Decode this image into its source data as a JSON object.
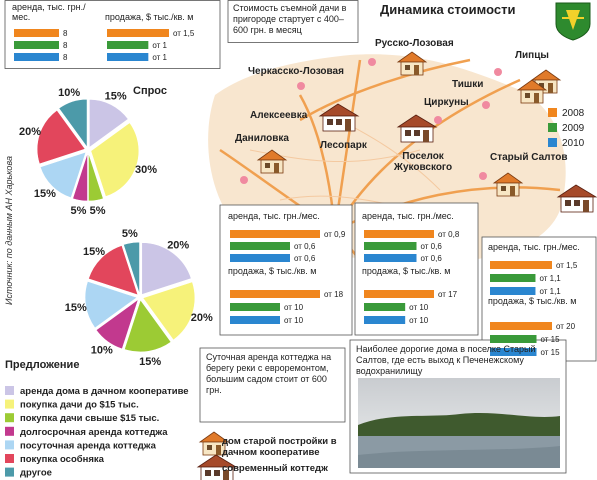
{
  "title": "Динамика стоимости",
  "source": "Источник: по данным АН Харькова",
  "legend": {
    "labels": [
      "2008",
      "2009",
      "2010"
    ],
    "colors": [
      "#f0861e",
      "#3a9a3a",
      "#2a86d0"
    ]
  },
  "notes": [
    "Стоимость съемной дачи в пригороде стартует с 400–600 грн. в месяц",
    "Суточная аренда коттеджа на берегу реки с евроремонтом, большим садом стоит от 600 грн.",
    "Наиболее дорогие дома в поселке Старый Салтов, где есть выход к Печенежскому водохранилищу"
  ],
  "places": [
    "Русско-Лозовая",
    "Черкасско-Лозовая",
    "Липцы",
    "Тишки",
    "Алексеевка",
    "Циркуны",
    "Даниловка",
    "Лесопарк",
    "Поселок Жуковского",
    "Старый Салтов"
  ],
  "house_legend": [
    "дом старой постройки в дачном кооперативе",
    "современный коттедж"
  ],
  "chart_data": [
    {
      "type": "pie",
      "title": "Спрос",
      "categories": [
        "аренда дома в дачном кооперативе",
        "покупка дачи до $15 тыс.",
        "покупка дачи свыше $15 тыс.",
        "долгосрочная аренда коттеджа",
        "посуточная аренда коттеджа",
        "покупка особняка",
        "другое"
      ],
      "values": [
        15,
        30,
        5,
        5,
        15,
        20,
        10
      ],
      "value_labels": [
        "15%",
        "30%",
        "5%",
        "5%",
        "15%",
        "20%",
        "10%"
      ],
      "colors": [
        "#cbc5e6",
        "#f6f27a",
        "#9ccb34",
        "#c2398e",
        "#acd6f3",
        "#e2465c",
        "#4c9aa9"
      ]
    },
    {
      "type": "pie",
      "title": "Предложение",
      "values": [
        20,
        20,
        15,
        10,
        15,
        15,
        5
      ],
      "value_labels": [
        "20%",
        "20%",
        "15%",
        "10%",
        "15%",
        "15%",
        "5%"
      ],
      "colors": [
        "#cbc5e6",
        "#f6f27a",
        "#9ccb34",
        "#c2398e",
        "#acd6f3",
        "#e2465c",
        "#4c9aa9"
      ]
    },
    {
      "type": "bar",
      "title": "аренда, тыс. грн./мес.",
      "values": [
        8,
        8,
        8
      ]
    },
    {
      "type": "bar",
      "title": "продажа, $ тыс./кв. м",
      "values": [
        1.5,
        1,
        1
      ],
      "value_labels": [
        "от 1,5",
        "от 1",
        "от 1"
      ]
    },
    {
      "type": "bar",
      "title": "аренда, тыс. грн./мес.",
      "values": [
        0.9,
        0.6,
        0.6
      ],
      "value_labels": [
        "от 0,9",
        "от 0,6",
        "от 0,6"
      ]
    },
    {
      "type": "bar",
      "title": "продажа, $ тыс./кв. м",
      "values": [
        18,
        10,
        10
      ],
      "value_labels": [
        "от 18",
        "от 10",
        "от 10"
      ]
    },
    {
      "type": "bar",
      "title": "аренда, тыс. грн./мес.",
      "values": [
        0.8,
        0.6,
        0.6
      ],
      "value_labels": [
        "от 0,8",
        "от 0,6",
        "от 0,6"
      ]
    },
    {
      "type": "bar",
      "title": "продажа, $ тыс./кв. м",
      "values": [
        17,
        10,
        10
      ],
      "value_labels": [
        "от 17",
        "от 10",
        "от 10"
      ]
    },
    {
      "type": "bar",
      "title": "аренда, тыс. грн./мес.",
      "values": [
        1.5,
        1.1,
        1.1
      ],
      "value_labels": [
        "от 1,5",
        "от 1,1",
        "от 1,1"
      ]
    },
    {
      "type": "bar",
      "title": "продажа, $ тыс./кв. м",
      "values": [
        20,
        15,
        15
      ],
      "value_labels": [
        "от 20",
        "от 15",
        "от 15"
      ]
    }
  ]
}
